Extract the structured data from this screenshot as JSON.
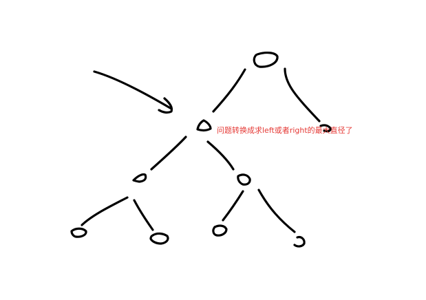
{
  "annotation": {
    "text": "问题转换成求left或者right的最大直径了",
    "color": "#e53935"
  },
  "ink_color": "#000000",
  "background": "#ffffff",
  "tree": {
    "nodes": [
      "root",
      "left",
      "right",
      "left-left",
      "left-right",
      "left-left-left",
      "left-left-right",
      "left-right-left",
      "left-right-right"
    ]
  }
}
